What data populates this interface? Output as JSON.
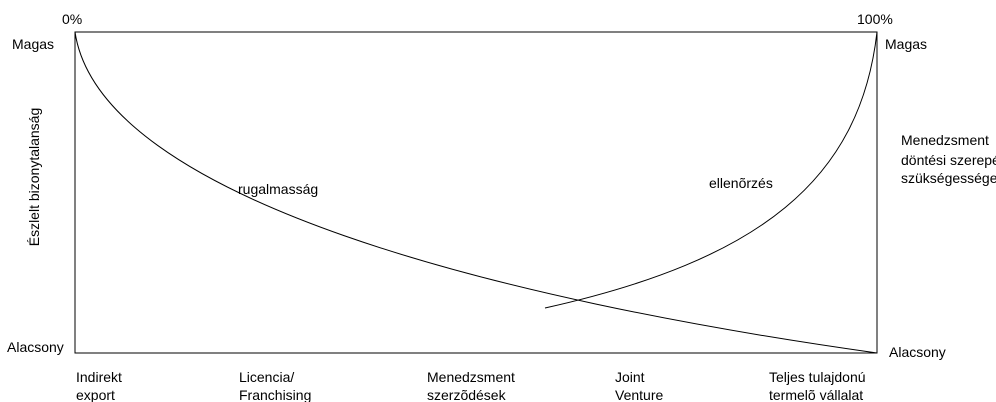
{
  "top_left_percent": "0%",
  "top_right_percent": "100%",
  "left_axis": {
    "high": "Magas",
    "low": "Alacsony",
    "title": "Észlelt bizonytalanság"
  },
  "right_axis": {
    "high": "Magas",
    "low": "Alacsony",
    "title_lines": [
      "Menedzsment",
      "döntési szerepé",
      "szükségessége"
    ]
  },
  "curves": {
    "flexibility_label": "rugalmasság",
    "control_label": "ellenõrzés"
  },
  "entry_modes": [
    {
      "line1": "Indirekt",
      "line2": "export"
    },
    {
      "line1": "Licencia/",
      "line2": "Franchising"
    },
    {
      "line1": "Menedzsment",
      "line2": "szerzõdések"
    },
    {
      "line1": "Joint",
      "line2": "Venture"
    },
    {
      "line1": "Teljes tulajdonú",
      "line2": "termelõ vállalat"
    }
  ],
  "colors": {
    "line": "#000000",
    "background": "#ffffff"
  }
}
